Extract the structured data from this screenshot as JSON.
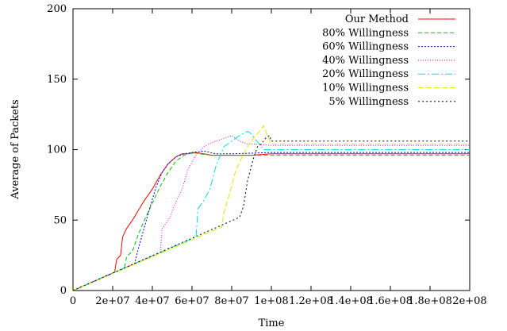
{
  "chart_data": {
    "type": "line",
    "title": "",
    "xlabel": "Time",
    "ylabel": "Average of Packets",
    "xlim": [
      0,
      200000000
    ],
    "ylim": [
      0,
      200
    ],
    "grid": false,
    "legend_position": "top-right",
    "xticks": [
      {
        "value": 0,
        "label": "0"
      },
      {
        "value": 20000000,
        "label": "2e+07"
      },
      {
        "value": 40000000,
        "label": "4e+07"
      },
      {
        "value": 60000000,
        "label": "6e+07"
      },
      {
        "value": 80000000,
        "label": "8e+07"
      },
      {
        "value": 100000000,
        "label": "1e+08"
      },
      {
        "value": 120000000,
        "label": "1.2e+08"
      },
      {
        "value": 140000000,
        "label": "1.4e+08"
      },
      {
        "value": 160000000,
        "label": "1.6e+08"
      },
      {
        "value": 180000000,
        "label": "1.8e+08"
      },
      {
        "value": 200000000,
        "label": "2e+08"
      }
    ],
    "yticks": [
      {
        "value": 0,
        "label": "0"
      },
      {
        "value": 50,
        "label": "50"
      },
      {
        "value": 100,
        "label": "100"
      },
      {
        "value": 150,
        "label": "150"
      },
      {
        "value": 200,
        "label": "200"
      }
    ],
    "series": [
      {
        "name": "Our Method",
        "color": "#ff0000",
        "dash": "",
        "points": [
          [
            0,
            0
          ],
          [
            21000000,
            13
          ],
          [
            22000000,
            22
          ],
          [
            24000000,
            25
          ],
          [
            25000000,
            38
          ],
          [
            27000000,
            44
          ],
          [
            30000000,
            50
          ],
          [
            33000000,
            57
          ],
          [
            36000000,
            64
          ],
          [
            40000000,
            72
          ],
          [
            44000000,
            82
          ],
          [
            48000000,
            90
          ],
          [
            52000000,
            95
          ],
          [
            55000000,
            97
          ],
          [
            58000000,
            97
          ],
          [
            62000000,
            98
          ],
          [
            66000000,
            97
          ],
          [
            70000000,
            96
          ],
          [
            80000000,
            96
          ],
          [
            90000000,
            96
          ],
          [
            100000000,
            97
          ],
          [
            200000000,
            97
          ]
        ]
      },
      {
        "name": "80% Willingness",
        "color": "#00c000",
        "dash": "5,3",
        "points": [
          [
            0,
            0
          ],
          [
            26000000,
            16
          ],
          [
            27000000,
            24
          ],
          [
            30000000,
            28
          ],
          [
            33000000,
            40
          ],
          [
            36000000,
            50
          ],
          [
            40000000,
            62
          ],
          [
            44000000,
            74
          ],
          [
            48000000,
            84
          ],
          [
            52000000,
            92
          ],
          [
            56000000,
            96
          ],
          [
            60000000,
            98
          ],
          [
            64000000,
            97
          ],
          [
            70000000,
            96
          ],
          [
            80000000,
            96
          ],
          [
            100000000,
            96
          ],
          [
            200000000,
            96
          ]
        ]
      },
      {
        "name": "60% Willingness",
        "color": "#0000ff",
        "dash": "2,2",
        "points": [
          [
            0,
            0
          ],
          [
            31000000,
            19
          ],
          [
            33000000,
            30
          ],
          [
            36000000,
            45
          ],
          [
            39000000,
            60
          ],
          [
            42000000,
            74
          ],
          [
            45000000,
            84
          ],
          [
            48000000,
            90
          ],
          [
            52000000,
            95
          ],
          [
            56000000,
            97
          ],
          [
            60000000,
            98
          ],
          [
            66000000,
            99
          ],
          [
            72000000,
            97
          ],
          [
            80000000,
            97
          ],
          [
            100000000,
            98
          ],
          [
            200000000,
            98
          ]
        ]
      },
      {
        "name": "40% Willingness",
        "color": "#ff00ff",
        "dash": "1,2",
        "points": [
          [
            0,
            0
          ],
          [
            44000000,
            27
          ],
          [
            45000000,
            44
          ],
          [
            49000000,
            52
          ],
          [
            51000000,
            60
          ],
          [
            55000000,
            72
          ],
          [
            58000000,
            86
          ],
          [
            62000000,
            96
          ],
          [
            66000000,
            102
          ],
          [
            70000000,
            105
          ],
          [
            74000000,
            107
          ],
          [
            78000000,
            109
          ],
          [
            80000000,
            110
          ],
          [
            84000000,
            106
          ],
          [
            88000000,
            104
          ],
          [
            92000000,
            104
          ],
          [
            100000000,
            103
          ],
          [
            200000000,
            103
          ]
        ]
      },
      {
        "name": "20% Willingness",
        "color": "#00e0e0",
        "dash": "9,3,2,3",
        "points": [
          [
            0,
            0
          ],
          [
            62000000,
            38
          ],
          [
            63000000,
            58
          ],
          [
            66000000,
            64
          ],
          [
            69000000,
            72
          ],
          [
            72000000,
            88
          ],
          [
            76000000,
            102
          ],
          [
            80000000,
            106
          ],
          [
            84000000,
            110
          ],
          [
            88000000,
            113
          ],
          [
            90000000,
            111
          ],
          [
            92000000,
            107
          ],
          [
            94000000,
            104
          ],
          [
            96000000,
            100
          ],
          [
            100000000,
            100
          ],
          [
            200000000,
            100
          ]
        ]
      },
      {
        "name": "10% Willingness",
        "color": "#e6e600",
        "dash": "7,3",
        "points": [
          [
            0,
            0
          ],
          [
            75000000,
            45
          ],
          [
            76000000,
            55
          ],
          [
            80000000,
            74
          ],
          [
            82000000,
            85
          ],
          [
            85000000,
            94
          ],
          [
            88000000,
            102
          ],
          [
            91000000,
            108
          ],
          [
            94000000,
            113
          ],
          [
            96000000,
            117
          ],
          [
            98000000,
            110
          ],
          [
            100000000,
            104
          ],
          [
            200000000,
            104
          ]
        ]
      },
      {
        "name": "5% Willingness",
        "color": "#000000",
        "dash": "2,3",
        "points": [
          [
            0,
            0
          ],
          [
            84000000,
            52
          ],
          [
            86000000,
            60
          ],
          [
            88000000,
            78
          ],
          [
            91000000,
            94
          ],
          [
            93000000,
            102
          ],
          [
            95000000,
            104
          ],
          [
            97000000,
            108
          ],
          [
            99000000,
            110
          ],
          [
            100000000,
            106
          ],
          [
            200000000,
            106
          ]
        ]
      }
    ]
  }
}
